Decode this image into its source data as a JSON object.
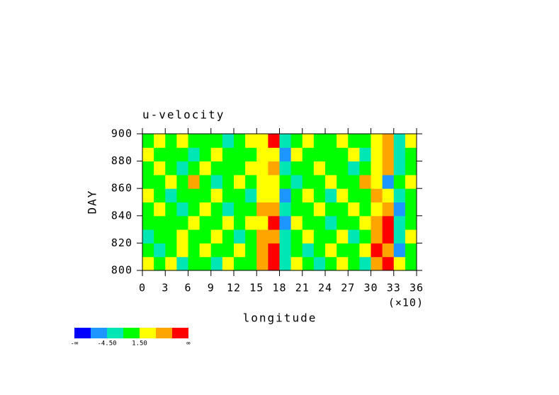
{
  "chart_data": {
    "type": "heatmap",
    "title": "u-velocity",
    "xlabel": "longitude",
    "ylabel": "DAY",
    "x_multiplier": "(×10)",
    "xlim": [
      0,
      360
    ],
    "ylim": [
      800,
      900
    ],
    "xticks": [
      0,
      {
        "value": 30,
        "label": "3"
      },
      {
        "value": 60,
        "label": "6"
      },
      {
        "value": 90,
        "label": "9"
      },
      {
        "value": 120,
        "label": "12"
      },
      {
        "value": 150,
        "label": "15"
      },
      {
        "value": 180,
        "label": "18"
      },
      {
        "value": 210,
        "label": "21"
      },
      {
        "value": 240,
        "label": "24"
      },
      {
        "value": 270,
        "label": "27"
      },
      {
        "value": 300,
        "label": "30"
      },
      {
        "value": 330,
        "label": "33"
      },
      {
        "value": 360,
        "label": "36"
      }
    ],
    "yticks": [
      800,
      820,
      840,
      860,
      880,
      900
    ],
    "x": [
      7.5,
      22.5,
      37.5,
      52.5,
      67.5,
      82.5,
      97.5,
      112.5,
      127.5,
      142.5,
      157.5,
      172.5,
      187.5,
      202.5,
      217.5,
      232.5,
      247.5,
      262.5,
      277.5,
      292.5,
      307.5,
      322.5,
      337.5,
      352.5
    ],
    "y": [
      805,
      815,
      825,
      835,
      845,
      855,
      865,
      875,
      885,
      895
    ],
    "z": [
      [
        2,
        0,
        3,
        -2,
        1,
        0,
        -2,
        2,
        0,
        1,
        5,
        8,
        -3,
        2,
        0,
        -2,
        1,
        3,
        0,
        -2,
        5,
        8,
        2,
        0
      ],
      [
        0,
        -2,
        1,
        2,
        -1,
        3,
        0,
        -1,
        2,
        0,
        6,
        9,
        -4,
        1,
        -2,
        0,
        2,
        -1,
        0,
        3,
        8,
        6,
        -5,
        1
      ],
      [
        -2,
        1,
        0,
        3,
        0,
        -1,
        2,
        0,
        -3,
        1,
        5,
        7,
        -2,
        0,
        2,
        -1,
        0,
        2,
        -2,
        0,
        6,
        9,
        -3,
        2
      ],
      [
        1,
        0,
        -1,
        0,
        2,
        0,
        -1,
        3,
        0,
        2,
        3,
        8,
        -5,
        2,
        0,
        1,
        -2,
        0,
        1,
        2,
        5,
        8,
        -2,
        0
      ],
      [
        0,
        2,
        0,
        -2,
        1,
        3,
        0,
        -2,
        1,
        0,
        6,
        5,
        -2,
        -1,
        0,
        3,
        0,
        -1,
        2,
        0,
        4,
        7,
        -6,
        1
      ],
      [
        3,
        0,
        -2,
        1,
        0,
        -1,
        2,
        0,
        0,
        -2,
        4,
        2,
        -5,
        1,
        3,
        0,
        -2,
        4,
        0,
        1,
        6,
        4,
        -2,
        0
      ],
      [
        0,
        -1,
        2,
        0,
        5,
        0,
        -2,
        1,
        2,
        0,
        2,
        3,
        0,
        -2,
        1,
        0,
        3,
        -1,
        0,
        5,
        4,
        -5,
        0,
        2
      ],
      [
        -1,
        3,
        0,
        -2,
        1,
        4,
        0,
        -1,
        0,
        2,
        3,
        5,
        -4,
        0,
        -1,
        2,
        0,
        1,
        -2,
        0,
        3,
        5,
        -2,
        0
      ],
      [
        2,
        0,
        1,
        0,
        -2,
        0,
        3,
        0,
        -1,
        0,
        4,
        3,
        -6,
        2,
        0,
        -1,
        1,
        0,
        2,
        -2,
        2,
        6,
        -3,
        1
      ],
      [
        0,
        2,
        -1,
        3,
        0,
        1,
        0,
        -2,
        1,
        2,
        3,
        8,
        -2,
        0,
        3,
        0,
        -1,
        2,
        0,
        1,
        2,
        7,
        -2,
        3
      ]
    ],
    "colorbar": {
      "colors": [
        "#0000ff",
        "#1e96ff",
        "#00e6b4",
        "#00ff00",
        "#ffff00",
        "#ffa500",
        "#ff0000"
      ],
      "bounds": [
        -7.5,
        -4.5,
        -1.5,
        1.5,
        4.5,
        7.5
      ],
      "ticks": [
        {
          "value": -4.5,
          "label": "-4.50"
        },
        {
          "value": 1.5,
          "label": "1.50"
        }
      ],
      "low_label": "-∞",
      "high_label": "∞"
    }
  }
}
